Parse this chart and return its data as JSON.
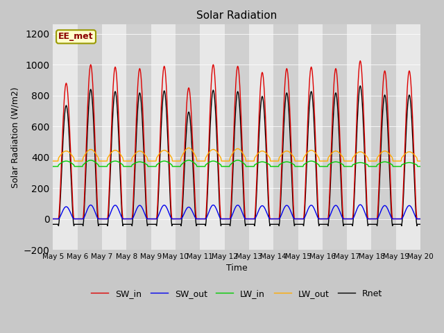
{
  "title": "Solar Radiation",
  "xlabel": "Time",
  "ylabel": "Solar Radiation (W/m2)",
  "ylim": [
    -200,
    1260
  ],
  "yticks": [
    -200,
    0,
    200,
    400,
    600,
    800,
    1000,
    1200
  ],
  "days": 15,
  "annotation_text": "EE_met",
  "colors": {
    "SW_in": "#dd0000",
    "SW_out": "#0000ee",
    "LW_in": "#00cc00",
    "LW_out": "#ffaa00",
    "Rnet": "#000000"
  },
  "legend_labels": [
    "SW_in",
    "SW_out",
    "LW_in",
    "LW_out",
    "Rnet"
  ],
  "bg_color": "#c8c8c8",
  "band_colors": [
    "#e8e8e8",
    "#d0d0d0"
  ],
  "grid_color": "#aaaaaa",
  "figsize": [
    6.4,
    4.8
  ],
  "dpi": 100,
  "sw_in_peaks": [
    880,
    1000,
    985,
    975,
    990,
    850,
    1000,
    990,
    950,
    975,
    985,
    975,
    1025,
    960,
    960
  ],
  "lw_in_base": 350,
  "lw_in_amps": [
    25,
    30,
    25,
    20,
    25,
    30,
    25,
    30,
    20,
    20,
    25,
    20,
    15,
    20,
    15
  ],
  "lw_out_base": 395,
  "lw_out_amps": [
    45,
    55,
    50,
    45,
    50,
    65,
    55,
    60,
    45,
    45,
    50,
    45,
    40,
    45,
    40
  ],
  "night_rnet": -65,
  "albedo": 0.09
}
